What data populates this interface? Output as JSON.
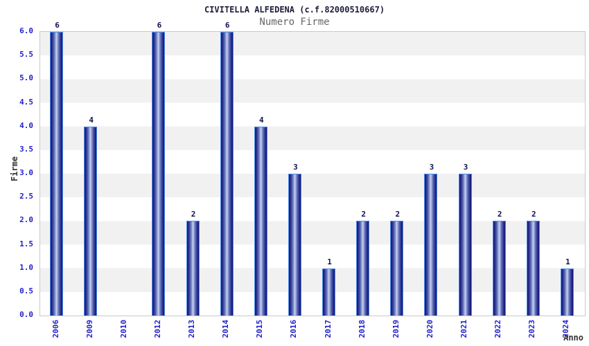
{
  "chart_data": {
    "type": "bar",
    "title": "CIVITELLA ALFEDENA (c.f.82000510667)",
    "subtitle": "Numero Firme",
    "xlabel": "Anno",
    "ylabel": "Firme",
    "categories": [
      "2006",
      "2009",
      "2010",
      "2012",
      "2013",
      "2014",
      "2015",
      "2016",
      "2017",
      "2018",
      "2019",
      "2020",
      "2021",
      "2022",
      "2023",
      "2024"
    ],
    "values": [
      6,
      4,
      0,
      6,
      2,
      6,
      4,
      3,
      1,
      2,
      2,
      3,
      3,
      2,
      2,
      1
    ],
    "ylim": [
      0,
      6
    ],
    "ytick_step": 0.5,
    "ytick_labels": [
      "6.0",
      "5.5",
      "5.0",
      "4.5",
      "4.0",
      "3.5",
      "3.0",
      "2.5",
      "2.0",
      "1.5",
      "1.0",
      "0.5",
      "0.0"
    ],
    "grid": "alternating horizontal bands every 0.5, gray/white, gray at top",
    "legend": "none",
    "bar_value_labels_shown": true,
    "colors": {
      "bar_edge": "#15156b",
      "bar_center": "#ccd4ee",
      "bar_border": "#4d8fea",
      "tick_label_blue": "#2222cc",
      "band_gray": "#f1f1f1",
      "band_white": "#ffffff",
      "plot_border": "#c9c9c9",
      "title_text": "#1c1c3a",
      "subtitle_text": "#666666",
      "axis_label_text": "#333333",
      "value_label_text": "#10104f",
      "background": "#ffffff"
    }
  }
}
